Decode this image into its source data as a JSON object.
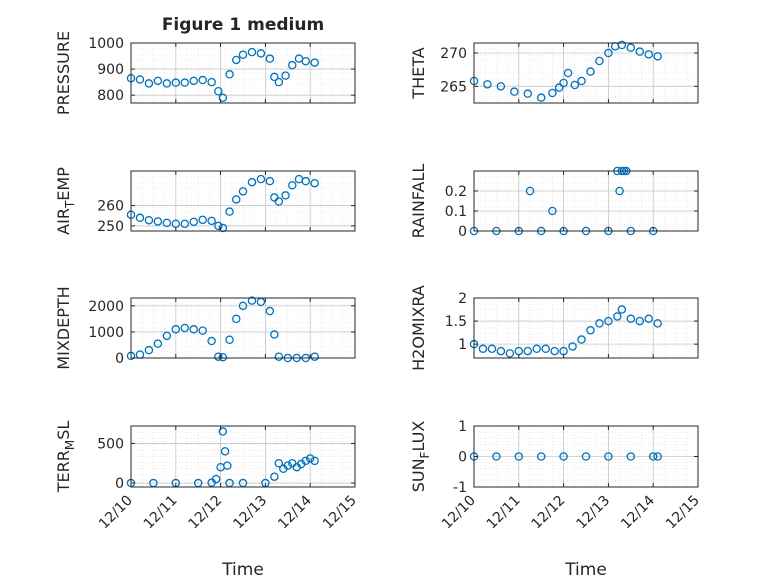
{
  "figure": {
    "title": "Figure 1 medium"
  },
  "colors": {
    "marker": "#0072BD",
    "axes": "#262626",
    "grid": "#c8c8c8"
  },
  "chart_data": [
    {
      "type": "scatter",
      "ylabel": "PRESSURE",
      "title": "Figure 1 medium",
      "ylim": [
        770,
        1000
      ],
      "yticks": [
        800,
        900,
        1000
      ],
      "ytick_labels": [
        "800",
        "900",
        "1000"
      ],
      "x": [
        0,
        0.2,
        0.4,
        0.6,
        0.8,
        1.0,
        1.2,
        1.4,
        1.6,
        1.8,
        1.95,
        2.05,
        2.2,
        2.35,
        2.5,
        2.7,
        2.9,
        3.1,
        3.2,
        3.3,
        3.45,
        3.6,
        3.75,
        3.9,
        4.1
      ],
      "values": [
        865,
        860,
        845,
        855,
        845,
        848,
        848,
        855,
        858,
        850,
        815,
        790,
        880,
        935,
        955,
        965,
        960,
        940,
        870,
        850,
        875,
        915,
        940,
        930,
        925
      ]
    },
    {
      "type": "scatter",
      "ylabel": "THETA",
      "ylim": [
        262.5,
        271.5
      ],
      "yticks": [
        265,
        270
      ],
      "ytick_labels": [
        "265",
        "270"
      ],
      "x": [
        0,
        0.3,
        0.6,
        0.9,
        1.2,
        1.5,
        1.75,
        1.9,
        2.0,
        2.1,
        2.25,
        2.4,
        2.6,
        2.8,
        3.0,
        3.15,
        3.3,
        3.5,
        3.7,
        3.9,
        4.1
      ],
      "values": [
        265.8,
        265.3,
        265.0,
        264.2,
        263.9,
        263.3,
        264.0,
        264.8,
        265.5,
        267.0,
        265.2,
        265.8,
        267.2,
        268.8,
        270.0,
        271.0,
        271.2,
        270.8,
        270.2,
        269.8,
        269.5
      ]
    },
    {
      "type": "scatter",
      "ylabel": "AIR_TEMP",
      "ylim": [
        247.5,
        277
      ],
      "yticks": [
        250,
        260
      ],
      "ytick_labels": [
        "250",
        "260"
      ],
      "x": [
        0,
        0.2,
        0.4,
        0.6,
        0.8,
        1.0,
        1.2,
        1.4,
        1.6,
        1.8,
        1.95,
        2.05,
        2.2,
        2.35,
        2.5,
        2.7,
        2.9,
        3.1,
        3.2,
        3.3,
        3.45,
        3.6,
        3.75,
        3.9,
        4.1
      ],
      "values": [
        255.5,
        254.0,
        252.8,
        252.2,
        251.5,
        251.0,
        251.0,
        252.0,
        253.0,
        252.5,
        250.0,
        249.0,
        257.0,
        263.0,
        267.0,
        271.5,
        273.0,
        272.0,
        264.0,
        262.0,
        265.0,
        270.0,
        273.0,
        272.0,
        271.0
      ]
    },
    {
      "type": "scatter",
      "ylabel": "RAINFALL",
      "ylim": [
        0,
        0.3
      ],
      "yticks": [
        0,
        0.1,
        0.2
      ],
      "ytick_labels": [
        "0",
        "0.1",
        "0.2"
      ],
      "x": [
        0,
        0.5,
        1.0,
        1.5,
        2.0,
        2.5,
        3.0,
        3.5,
        4.0,
        1.25,
        1.75,
        3.2,
        3.25,
        3.3,
        3.35,
        3.4
      ],
      "values": [
        0,
        0,
        0,
        0,
        0,
        0,
        0,
        0,
        0,
        0.2,
        0.1,
        0.3,
        0.2,
        0.3,
        0.3,
        0.3
      ]
    },
    {
      "type": "scatter",
      "ylabel": "MIXDEPTH",
      "ylim": [
        0,
        2300
      ],
      "yticks": [
        0,
        1000,
        2000
      ],
      "ytick_labels": [
        "0",
        "1000",
        "2000"
      ],
      "x": [
        0,
        0.2,
        0.4,
        0.6,
        0.8,
        1.0,
        1.2,
        1.4,
        1.6,
        1.8,
        1.95,
        2.05,
        2.2,
        2.35,
        2.5,
        2.7,
        2.9,
        3.1,
        3.2,
        3.3,
        3.5,
        3.7,
        3.9,
        4.1
      ],
      "values": [
        80,
        130,
        300,
        550,
        850,
        1100,
        1150,
        1100,
        1050,
        650,
        50,
        30,
        700,
        1500,
        2000,
        2200,
        2150,
        1800,
        900,
        50,
        0,
        0,
        0,
        50
      ]
    },
    {
      "type": "scatter",
      "ylabel": "H2OMIXRA",
      "ylim": [
        0.7,
        2.0
      ],
      "yticks": [
        1,
        1.5,
        2
      ],
      "ytick_labels": [
        "1",
        "1.5",
        "2"
      ],
      "x": [
        0,
        0.2,
        0.4,
        0.6,
        0.8,
        1.0,
        1.2,
        1.4,
        1.6,
        1.8,
        2.0,
        2.2,
        2.4,
        2.6,
        2.8,
        3.0,
        3.2,
        3.3,
        3.5,
        3.7,
        3.9,
        4.1
      ],
      "values": [
        1.0,
        0.9,
        0.9,
        0.85,
        0.8,
        0.85,
        0.85,
        0.9,
        0.9,
        0.85,
        0.85,
        0.95,
        1.1,
        1.3,
        1.45,
        1.5,
        1.6,
        1.75,
        1.55,
        1.5,
        1.55,
        1.45
      ]
    },
    {
      "type": "scatter",
      "ylabel": "TERR_MSL",
      "ylim": [
        -50,
        720
      ],
      "yticks": [
        0,
        500
      ],
      "ytick_labels": [
        "0",
        "500"
      ],
      "x": [
        0,
        0.5,
        1.0,
        1.5,
        1.8,
        1.9,
        2.0,
        2.05,
        2.1,
        2.15,
        2.2,
        2.5,
        3.0,
        3.2,
        3.3,
        3.4,
        3.5,
        3.6,
        3.7,
        3.8,
        3.9,
        4.0,
        4.1
      ],
      "values": [
        0,
        0,
        0,
        0,
        5,
        50,
        200,
        650,
        400,
        220,
        0,
        0,
        0,
        80,
        250,
        180,
        220,
        250,
        200,
        240,
        280,
        310,
        280
      ]
    },
    {
      "type": "scatter",
      "ylabel": "SUN_FLUX",
      "ylim": [
        -1,
        1
      ],
      "yticks": [
        -1,
        0,
        1
      ],
      "ytick_labels": [
        "-1",
        "0",
        "1"
      ],
      "x": [
        0,
        0.5,
        1.0,
        1.5,
        2.0,
        2.5,
        3.0,
        3.5,
        4.0,
        4.1
      ],
      "values": [
        0,
        0,
        0,
        0,
        0,
        0,
        0,
        0,
        0,
        0
      ]
    }
  ],
  "x_axis": {
    "xlim": [
      0,
      5
    ],
    "tick_labels": [
      "12/10",
      "12/11",
      "12/12",
      "12/13",
      "12/14",
      "12/15"
    ],
    "xlabel": "Time"
  }
}
